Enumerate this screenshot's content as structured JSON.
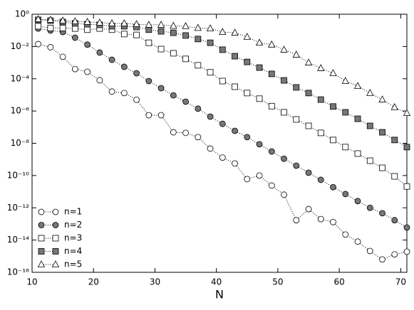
{
  "chart_data": {
    "type": "line",
    "xlabel": "N",
    "x": [
      11,
      13,
      15,
      17,
      19,
      21,
      23,
      25,
      27,
      29,
      31,
      33,
      35,
      37,
      39,
      41,
      43,
      45,
      47,
      49,
      51,
      53,
      55,
      57,
      59,
      61,
      63,
      65,
      67,
      69,
      71
    ],
    "series": [
      {
        "name": "n=1",
        "color": "#ffffff",
        "marker": "circle",
        "values": [
          0.014,
          0.009,
          0.0023,
          0.0004,
          0.00027,
          8e-05,
          1.6e-05,
          1.3e-05,
          5e-06,
          5.5e-07,
          5.5e-07,
          4.8e-08,
          4.4e-08,
          2.4e-08,
          4.7e-09,
          1.3e-09,
          5.6e-10,
          6e-11,
          1e-10,
          2.4e-11,
          6.5e-12,
          1.7e-13,
          8.3e-13,
          2e-13,
          1.3e-13,
          2.2e-14,
          8e-15,
          2.1e-15,
          6.3e-16,
          1.3e-15,
          1.9e-15
        ]
      },
      {
        "name": "n=2",
        "color": "#777777",
        "marker": "circle",
        "values": [
          0.13,
          0.098,
          0.079,
          0.035,
          0.013,
          0.0042,
          0.0015,
          0.00055,
          0.00022,
          7.2e-05,
          2.6e-05,
          9.3e-06,
          3.8e-06,
          1.4e-06,
          4.5e-07,
          1.6e-07,
          5.9e-08,
          2.4e-08,
          8.7e-09,
          3.1e-09,
          1.1e-09,
          4.1e-10,
          1.5e-10,
          5.4e-11,
          1.9e-11,
          7.1e-12,
          2.6e-12,
          1e-12,
          4.6e-13,
          1.7e-13,
          6e-14
        ]
      },
      {
        "name": "n=3",
        "color": "#ffffff",
        "marker": "square",
        "values": [
          0.18,
          0.14,
          0.14,
          0.13,
          0.11,
          0.13,
          0.11,
          0.059,
          0.052,
          0.017,
          0.0069,
          0.0038,
          0.0017,
          0.00068,
          0.00025,
          7.2e-05,
          3.2e-05,
          1.3e-05,
          5.8e-06,
          2e-06,
          8.3e-07,
          3e-07,
          1.2e-07,
          4.4e-08,
          1.6e-08,
          5.8e-09,
          2.3e-09,
          8.3e-10,
          3e-10,
          8.9e-11,
          2.1e-11
        ]
      },
      {
        "name": "n=4",
        "color": "#777777",
        "marker": "square",
        "values": [
          0.45,
          0.4,
          0.33,
          0.27,
          0.24,
          0.22,
          0.18,
          0.18,
          0.16,
          0.11,
          0.087,
          0.071,
          0.048,
          0.029,
          0.017,
          0.0063,
          0.0025,
          0.0011,
          0.00049,
          0.0002,
          7.9e-05,
          2.9e-05,
          1.3e-05,
          5.1e-06,
          1.9e-06,
          8.3e-07,
          3.3e-07,
          1.2e-07,
          4.8e-08,
          1.6e-08,
          5.8e-09
        ]
      },
      {
        "name": "n=5",
        "color": "#ffffff",
        "marker": "triangle",
        "values": [
          0.49,
          0.45,
          0.4,
          0.36,
          0.33,
          0.3,
          0.27,
          0.27,
          0.24,
          0.22,
          0.22,
          0.19,
          0.18,
          0.14,
          0.13,
          0.079,
          0.071,
          0.039,
          0.017,
          0.013,
          0.0063,
          0.0031,
          0.001,
          0.00045,
          0.00022,
          7.2e-05,
          3.5e-05,
          1.3e-05,
          5.1e-06,
          1.7e-06,
          7.4e-07
        ]
      }
    ],
    "xlim": [
      10,
      71
    ],
    "xticks": [
      10,
      20,
      30,
      40,
      50,
      60,
      70
    ],
    "ylim": [
      1e-16,
      1
    ],
    "log_y": true,
    "yticks": [
      {
        "value": 1,
        "label": "10⁰"
      },
      {
        "value": 0.01,
        "label": "10⁻²"
      },
      {
        "value": 0.0001,
        "label": "10⁻⁴"
      },
      {
        "value": 1e-06,
        "label": "10⁻⁶"
      },
      {
        "value": 1e-08,
        "label": "10⁻⁸"
      },
      {
        "value": 1e-10,
        "label": "10⁻¹⁰"
      },
      {
        "value": 1e-12,
        "label": "10⁻¹²"
      },
      {
        "value": 1e-14,
        "label": "10⁻¹⁴"
      },
      {
        "value": 1e-16,
        "label": "10⁻¹⁶"
      }
    ],
    "legend": "lower left"
  }
}
